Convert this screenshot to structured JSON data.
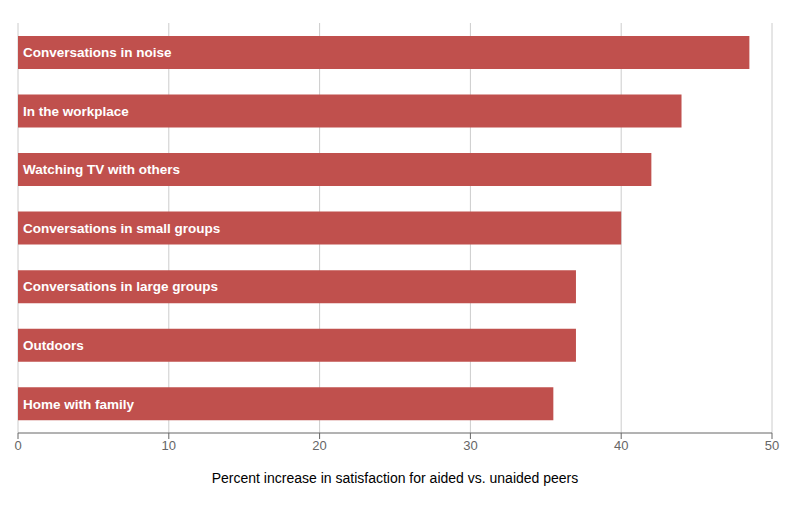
{
  "chart_data": {
    "type": "bar",
    "orientation": "horizontal",
    "categories": [
      "Home with family",
      "Outdoors",
      "Conversations in large groups",
      "Conversations in small groups",
      "Watching TV with others",
      "In the workplace",
      "Conversations in noise"
    ],
    "values": [
      35.5,
      37.0,
      37.0,
      40.0,
      42.0,
      44.0,
      48.5
    ],
    "color": "#c0504d",
    "xlabel": "Percent increase in satisfaction for aided vs. unaided peers",
    "xlim": [
      0,
      50
    ],
    "xticks": [
      0,
      10,
      20,
      30,
      40,
      50
    ],
    "grid": true,
    "tick_labels": "x"
  }
}
